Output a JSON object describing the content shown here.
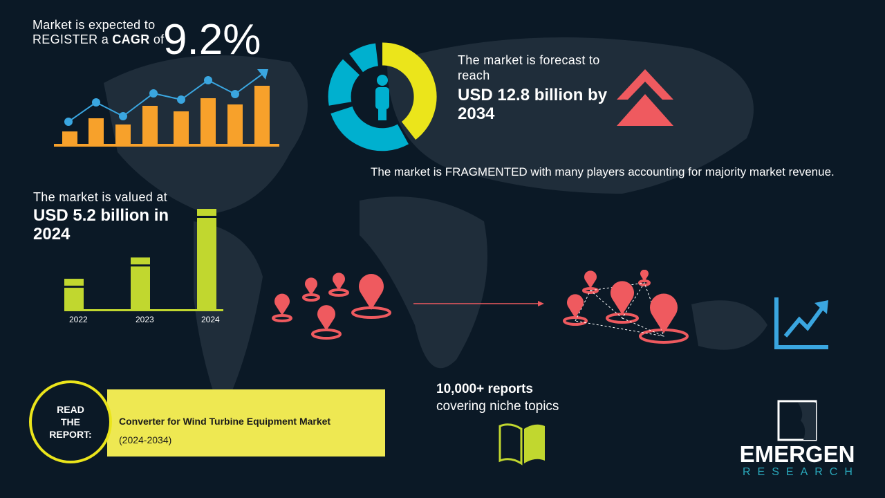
{
  "cagr": {
    "line1": "Market is expected to",
    "line2_pre": "REGISTER a ",
    "line2_bold": "CAGR",
    "line2_post": " of",
    "value": "9.2%"
  },
  "forecast": {
    "label": "The market is forecast to reach",
    "value": "USD 12.8 billion by 2034"
  },
  "fragmented": "The market is FRAGMENTED with many players accounting for majority market revenue.",
  "valued": {
    "label": "The market is valued at",
    "value": "USD 5.2 billion in 2024"
  },
  "chart_data": {
    "type": "bar",
    "categories": [
      "2022",
      "2023",
      "2024"
    ],
    "values": [
      1,
      1.7,
      3.3
    ],
    "color": "#c1d72f"
  },
  "reports": {
    "line1": "10,000+ reports",
    "line2": "covering niche topics"
  },
  "read": {
    "circle": [
      "READ",
      "THE",
      "REPORT:"
    ],
    "title": "Converter for Wind Turbine Equipment Market",
    "years": "(2024-2034)"
  },
  "logo": {
    "name": "EMERGEN",
    "sub": "RESEARCH"
  },
  "colors": {
    "bg": "#0b1926",
    "orange": "#f7a12b",
    "blue": "#3aa6e0",
    "yellow": "#ebe51b",
    "red": "#ef5a5f",
    "green": "#c1d72f",
    "band": "#eee852"
  }
}
